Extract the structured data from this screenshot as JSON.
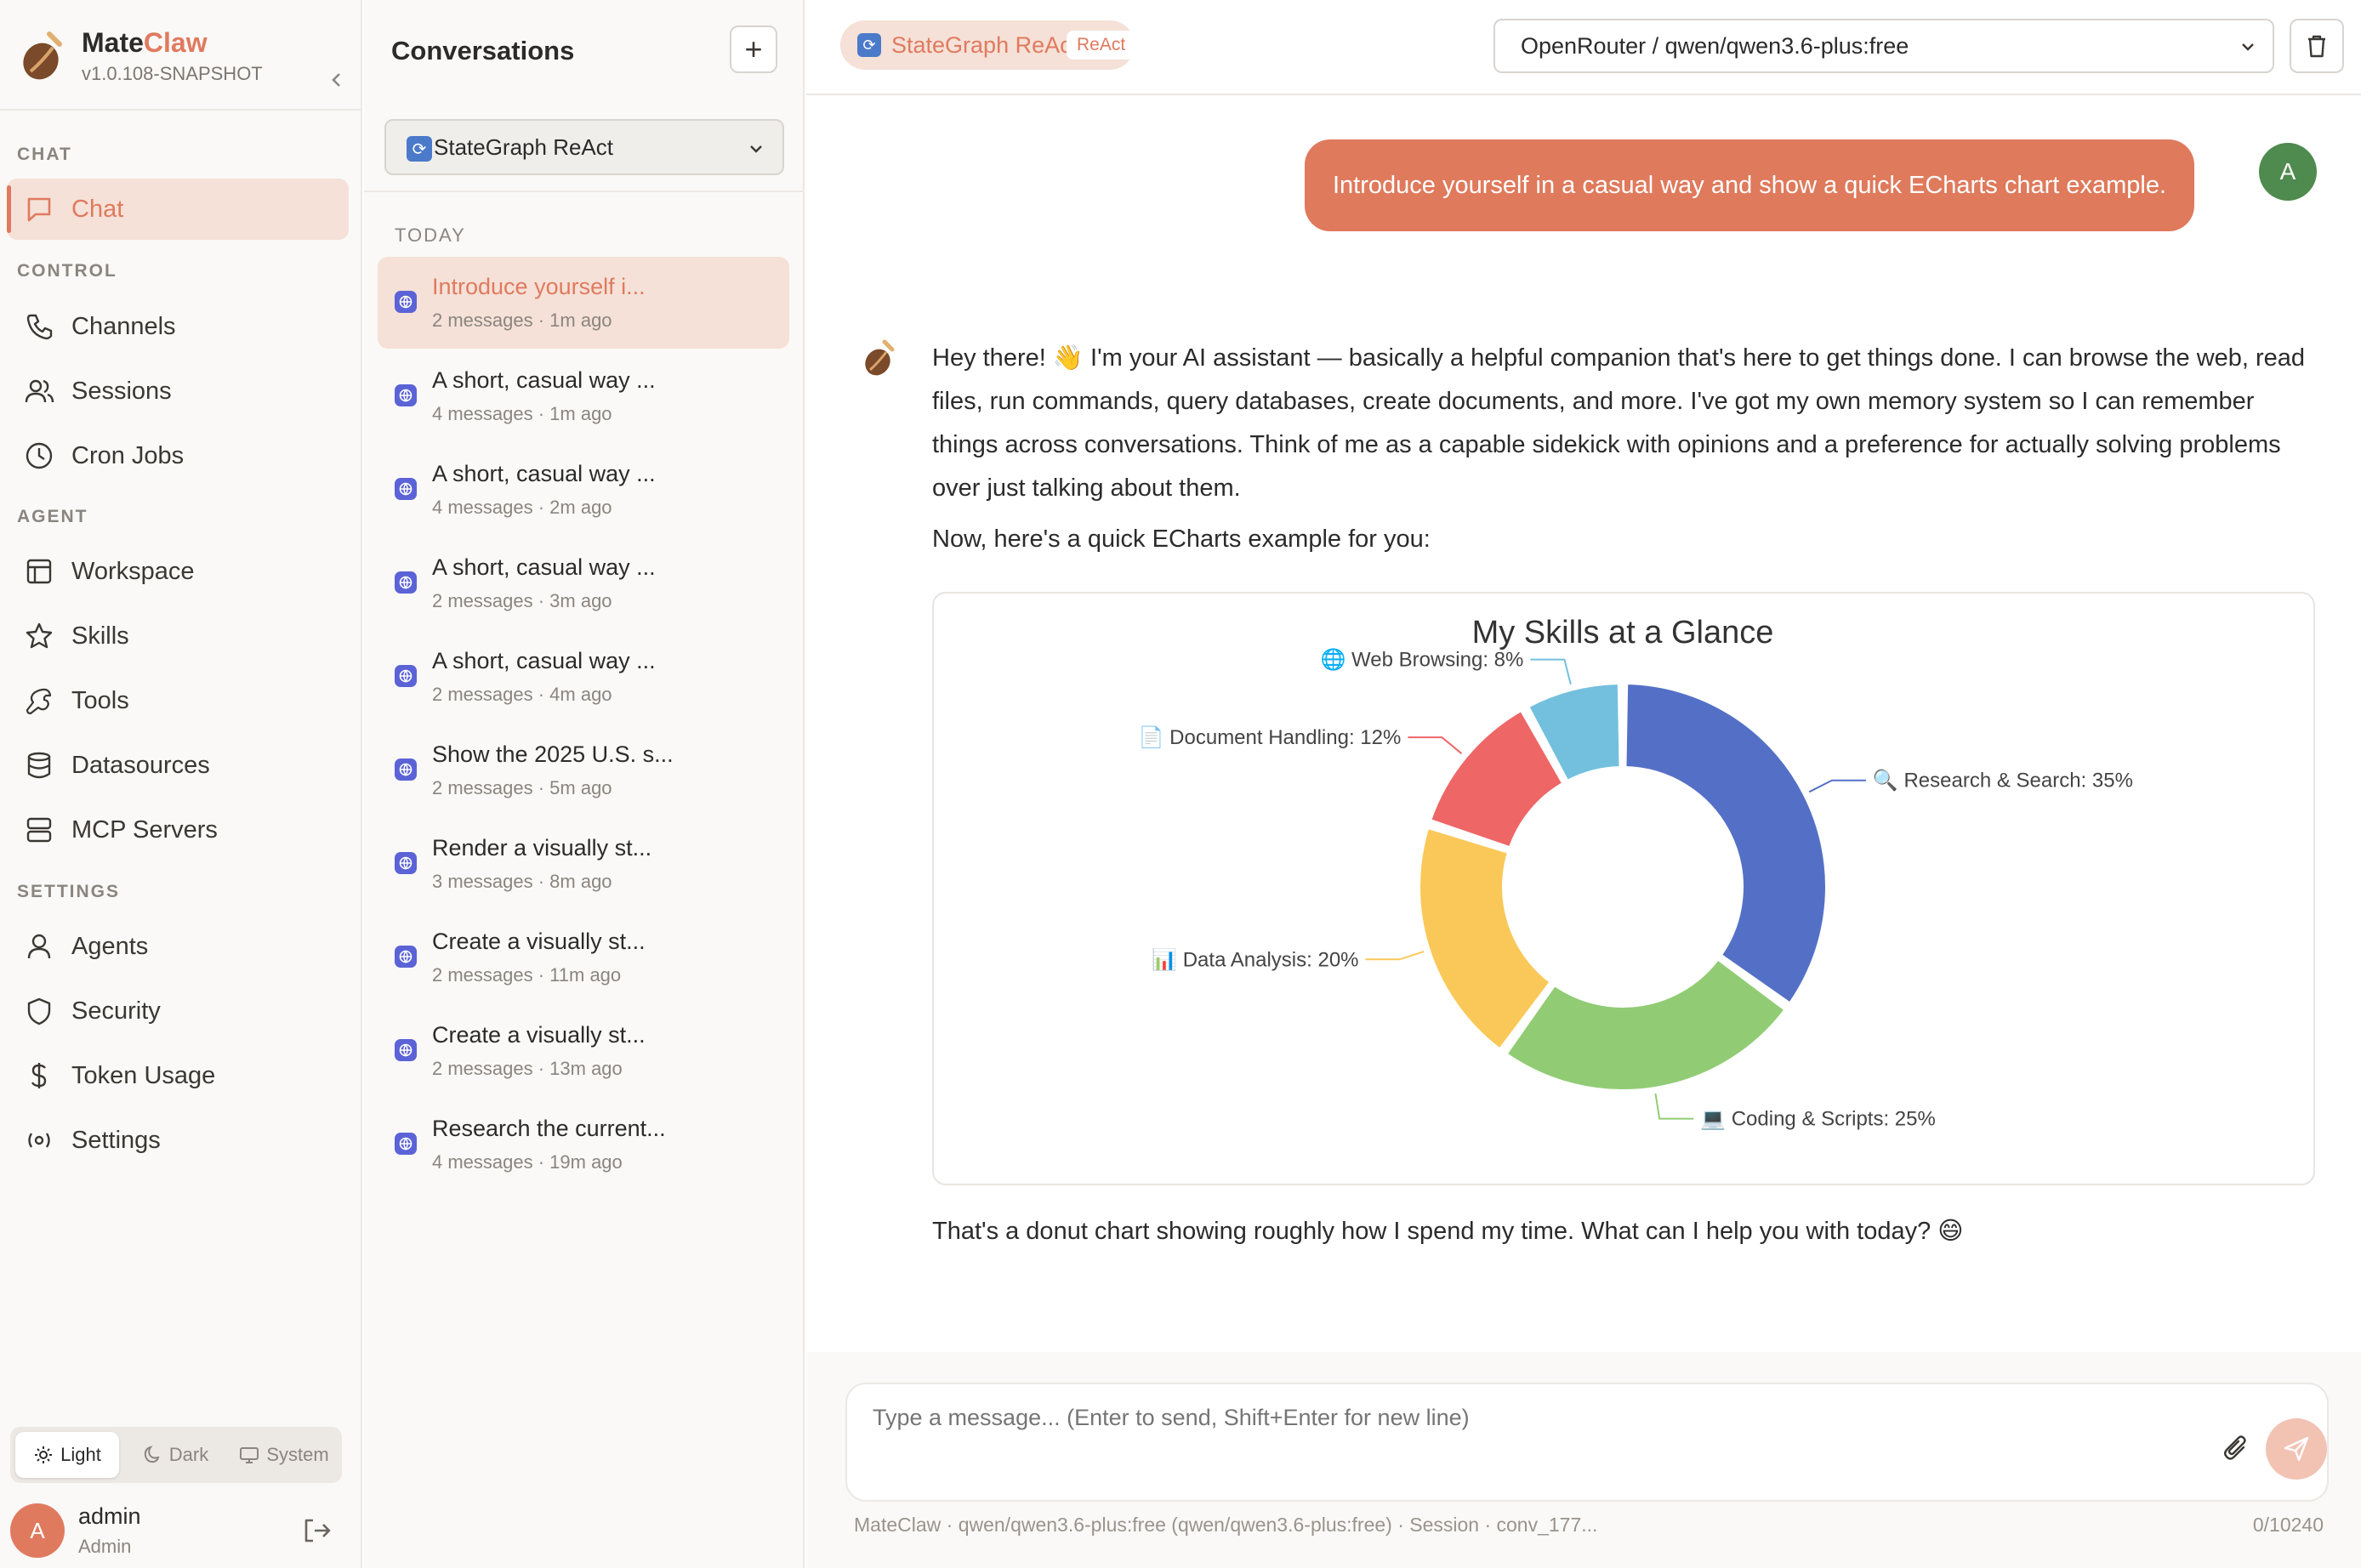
{
  "brand": {
    "name_main": "Mate",
    "name_accent": "Claw",
    "version": "v1.0.108-SNAPSHOT"
  },
  "sidebar": {
    "sections": [
      {
        "label": "CHAT"
      },
      {
        "label": "CONTROL"
      },
      {
        "label": "AGENT"
      },
      {
        "label": "SETTINGS"
      }
    ],
    "items": [
      {
        "label": "Chat",
        "icon": "chat-bubble-icon"
      },
      {
        "label": "Channels",
        "icon": "phone-icon"
      },
      {
        "label": "Sessions",
        "icon": "users-icon"
      },
      {
        "label": "Cron Jobs",
        "icon": "clock-icon"
      },
      {
        "label": "Workspace",
        "icon": "layout-icon"
      },
      {
        "label": "Skills",
        "icon": "star-icon"
      },
      {
        "label": "Tools",
        "icon": "wrench-icon"
      },
      {
        "label": "Datasources",
        "icon": "database-icon"
      },
      {
        "label": "MCP Servers",
        "icon": "server-icon"
      },
      {
        "label": "Agents",
        "icon": "user-icon"
      },
      {
        "label": "Security",
        "icon": "shield-icon"
      },
      {
        "label": "Token Usage",
        "icon": "dollar-icon"
      },
      {
        "label": "Settings",
        "icon": "settings-icon"
      }
    ],
    "theme": {
      "light": "Light",
      "dark": "Dark",
      "system": "System",
      "selected": "Light"
    },
    "user": {
      "initial": "A",
      "name": "admin",
      "role": "Admin"
    }
  },
  "conversations": {
    "title": "Conversations",
    "new_label": "+",
    "agent_select": "StateGraph ReAct",
    "group_label": "TODAY",
    "items": [
      {
        "title": "Introduce yourself i...",
        "meta": "2 messages · 1m ago"
      },
      {
        "title": "A short, casual way ...",
        "meta": "4 messages · 1m ago"
      },
      {
        "title": "A short, casual way ...",
        "meta": "4 messages · 2m ago"
      },
      {
        "title": "A short, casual way ...",
        "meta": "2 messages · 3m ago"
      },
      {
        "title": "A short, casual way ...",
        "meta": "2 messages · 4m ago"
      },
      {
        "title": "Show the 2025 U.S. s...",
        "meta": "2 messages · 5m ago"
      },
      {
        "title": "Render a visually st...",
        "meta": "3 messages · 8m ago"
      },
      {
        "title": "Create a visually st...",
        "meta": "2 messages · 11m ago"
      },
      {
        "title": "Create a visually st...",
        "meta": "2 messages · 13m ago"
      },
      {
        "title": "Research the current...",
        "meta": "4 messages · 19m ago"
      }
    ]
  },
  "topbar": {
    "agent_name": "StateGraph ReAct",
    "agent_tag": "ReAct",
    "model": "OpenRouter / qwen/qwen3.6-plus:free"
  },
  "chat": {
    "user_message": "Introduce yourself in a casual way and show a quick ECharts chart example.",
    "user_initial": "A",
    "bot_paragraph_1": "Hey there! 👋 I'm your AI assistant — basically a helpful companion that's here to get things done. I can browse the web, read files, run commands, query databases, create documents, and more. I've got my own memory system so I can remember things across conversations. Think of me as a capable sidekick with opinions and a preference for actually solving problems over just talking about them.",
    "bot_paragraph_2": "Now, here's a quick ECharts example for you:",
    "bot_paragraph_3": "That's a donut chart showing roughly how I spend my time. What can I help you with today? 😄"
  },
  "chart_data": {
    "type": "pie",
    "title": "My Skills at a Glance",
    "slices": [
      {
        "label": "🔍 Research & Search: 35%",
        "value": 35,
        "color": "#5470c6"
      },
      {
        "label": "💻 Coding & Scripts: 25%",
        "value": 25,
        "color": "#91cc75"
      },
      {
        "label": "📊 Data Analysis: 20%",
        "value": 20,
        "color": "#fac858"
      },
      {
        "label": "📄 Document Handling: 12%",
        "value": 12,
        "color": "#ee6666"
      },
      {
        "label": "🌐 Web Browsing: 8%",
        "value": 8,
        "color": "#73c0de"
      }
    ]
  },
  "composer": {
    "placeholder": "Type a message... (Enter to send, Shift+Enter for new line)",
    "footer": "MateClaw · qwen/qwen3.6-plus:free (qwen/qwen3.6-plus:free) · Session · conv_177...",
    "counter": "0/10240"
  },
  "colors": {
    "accent": "#e07a5f",
    "accent_soft": "#f5e1d7",
    "user_avatar": "#4f8a4f"
  }
}
